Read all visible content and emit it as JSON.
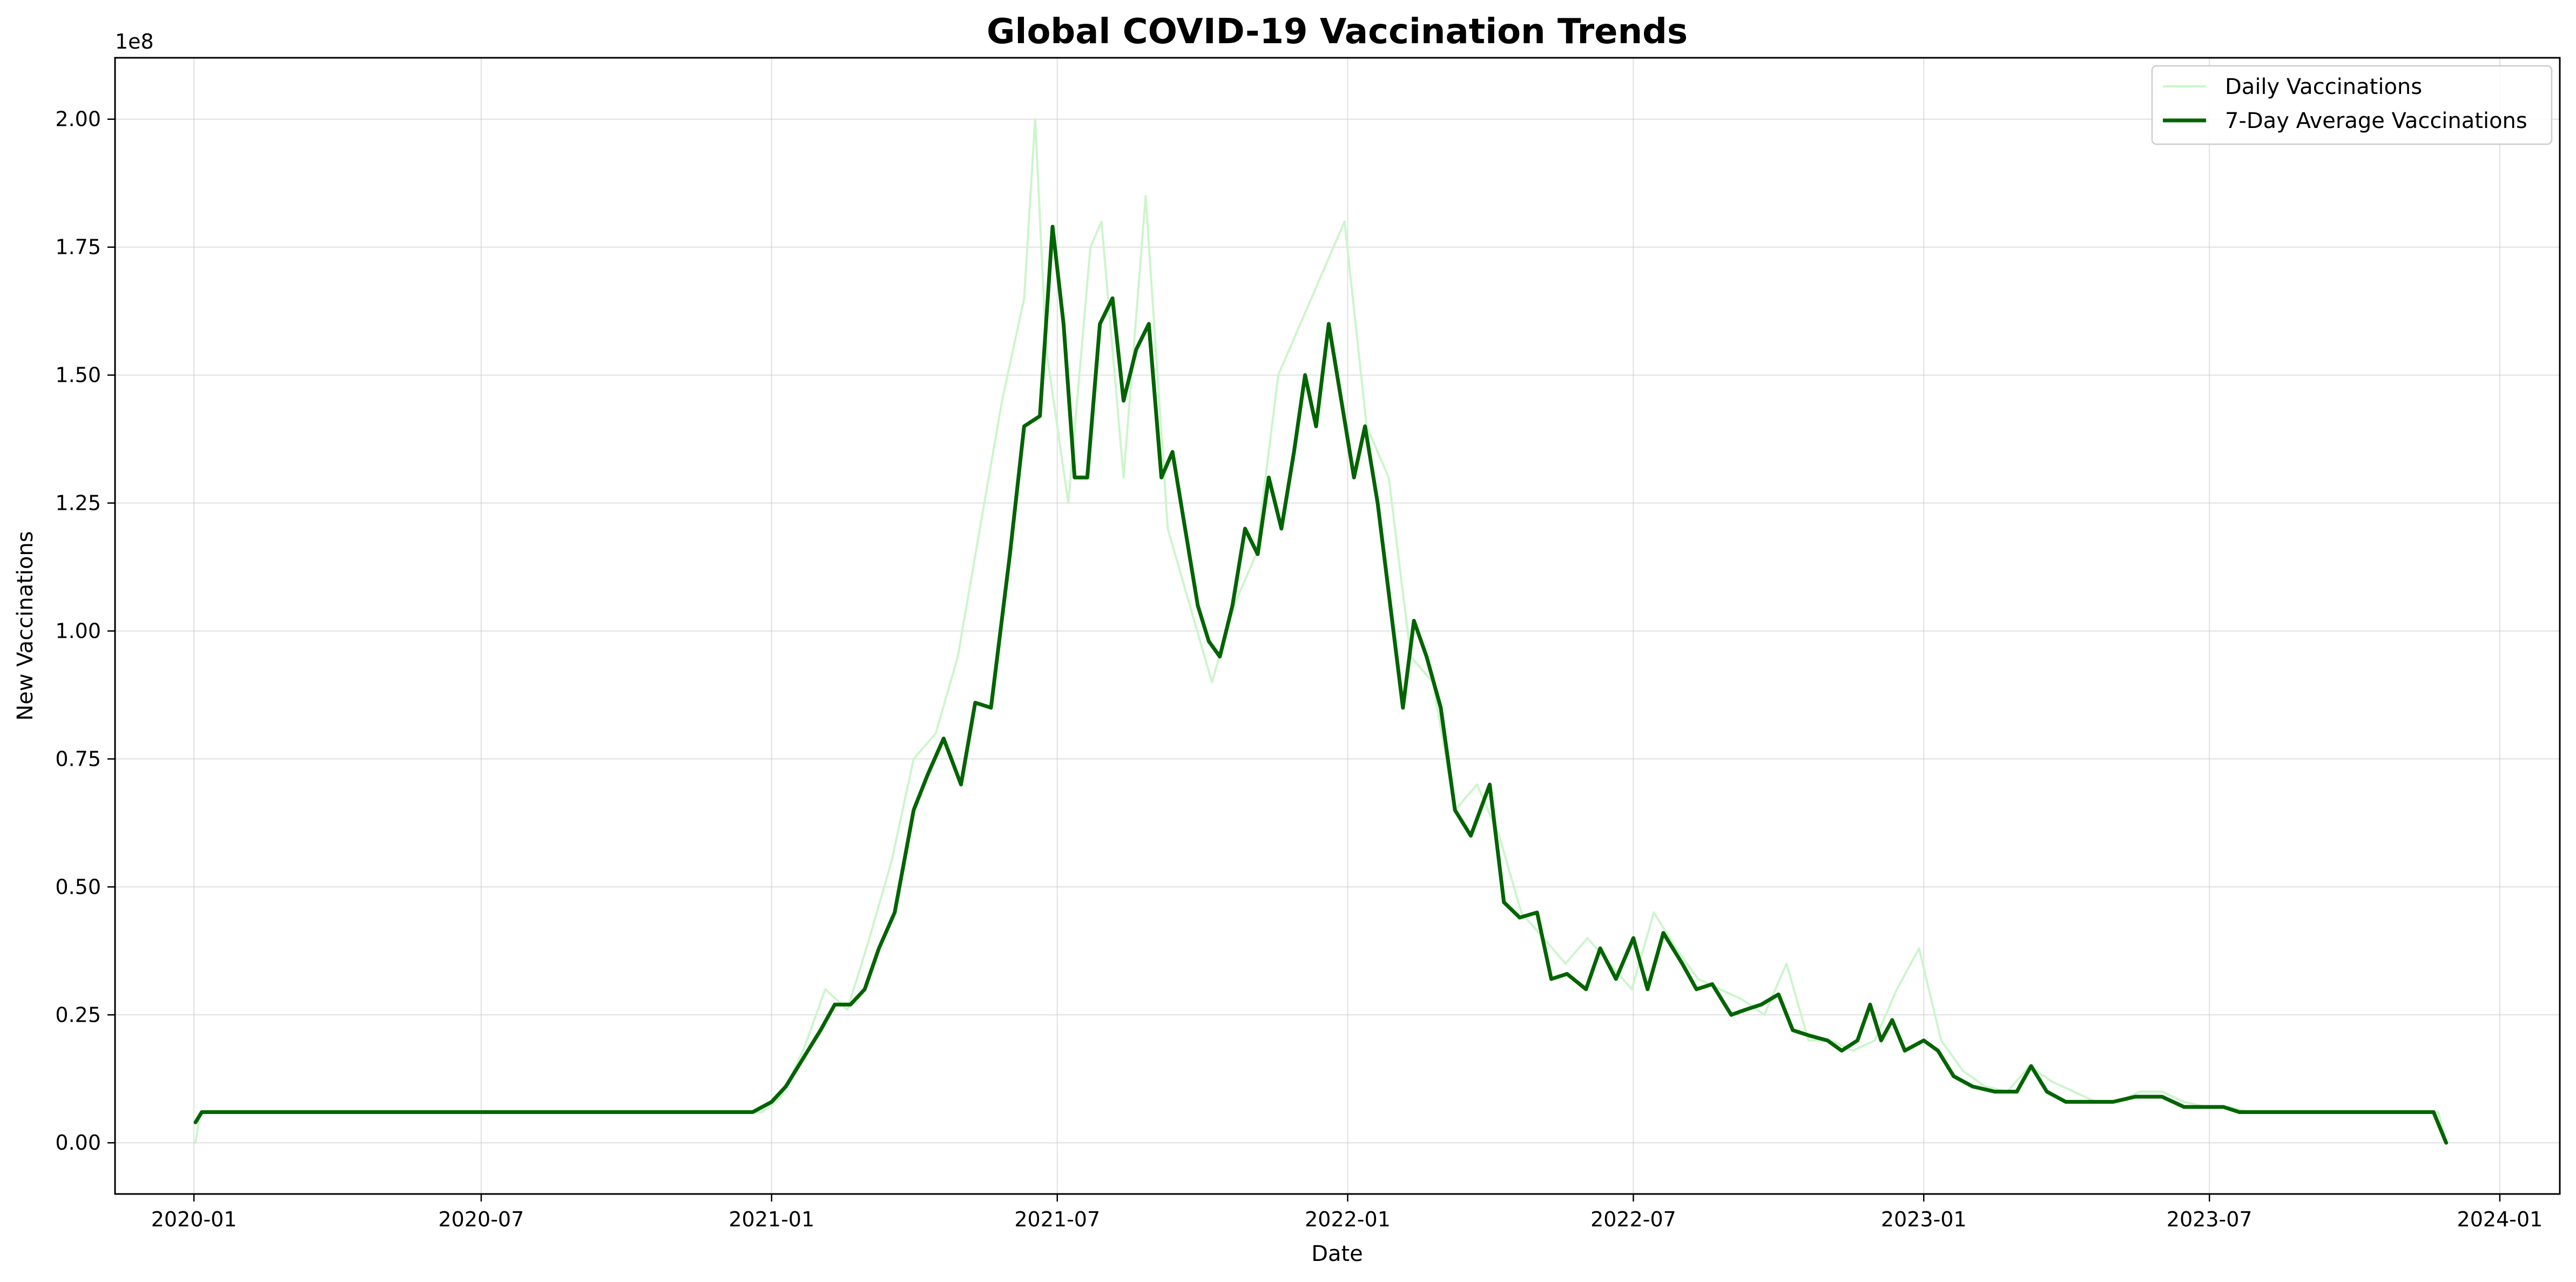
{
  "chart_data": {
    "type": "line",
    "title": "Global COVID-19 Vaccination Trends",
    "xlabel": "Date",
    "ylabel": "New Vaccinations",
    "y_offset_text": "1e8",
    "y_scale": 100000000,
    "x_ticks": [
      "2020-01",
      "2020-07",
      "2021-01",
      "2021-07",
      "2022-01",
      "2022-07",
      "2023-01",
      "2023-07",
      "2024-01"
    ],
    "y_ticks": [
      0.0,
      0.25,
      0.5,
      0.75,
      1.0,
      1.25,
      1.5,
      1.75,
      2.0
    ],
    "y_tick_labels": [
      "0.00",
      "0.25",
      "0.50",
      "0.75",
      "1.00",
      "1.25",
      "1.50",
      "1.75",
      "2.00"
    ],
    "xlim": [
      "2019-11-12",
      "2024-02-08"
    ],
    "ylim": [
      -0.1,
      2.12
    ],
    "grid": true,
    "legend_position": "top-right",
    "series": [
      {
        "name": "Daily Vaccinations",
        "color": "#ccf5cc",
        "x": [
          "2020-01-02",
          "2020-01-05",
          "2020-12-26",
          "2021-01-07",
          "2021-01-21",
          "2021-02-04",
          "2021-02-18",
          "2021-03-04",
          "2021-03-18",
          "2021-04-01",
          "2021-04-15",
          "2021-04-29",
          "2021-05-13",
          "2021-05-27",
          "2021-06-10",
          "2021-06-17",
          "2021-06-24",
          "2021-07-08",
          "2021-07-22",
          "2021-07-29",
          "2021-08-12",
          "2021-08-26",
          "2021-09-09",
          "2021-09-23",
          "2021-10-07",
          "2021-10-21",
          "2021-11-04",
          "2021-11-18",
          "2021-12-02",
          "2021-12-16",
          "2021-12-30",
          "2022-01-13",
          "2022-01-27",
          "2022-02-10",
          "2022-02-24",
          "2022-03-10",
          "2022-03-24",
          "2022-04-07",
          "2022-04-21",
          "2022-05-05",
          "2022-05-19",
          "2022-06-02",
          "2022-06-16",
          "2022-06-30",
          "2022-07-14",
          "2022-07-28",
          "2022-08-11",
          "2022-08-25",
          "2022-09-08",
          "2022-09-22",
          "2022-10-06",
          "2022-10-20",
          "2022-11-03",
          "2022-11-17",
          "2022-12-01",
          "2022-12-15",
          "2022-12-29",
          "2023-01-12",
          "2023-01-26",
          "2023-02-09",
          "2023-02-23",
          "2023-03-09",
          "2023-03-23",
          "2023-04-06",
          "2023-04-20",
          "2023-05-04",
          "2023-05-18",
          "2023-06-01",
          "2023-06-15",
          "2023-06-29",
          "2023-07-13",
          "2023-07-27",
          "2023-08-10",
          "2023-08-24",
          "2023-09-07",
          "2023-09-21",
          "2023-10-05",
          "2023-10-19",
          "2023-11-02",
          "2023-11-16",
          "2023-11-23",
          "2023-11-28"
        ],
        "values": [
          0.0,
          0.06,
          0.06,
          0.09,
          0.18,
          0.3,
          0.26,
          0.4,
          0.55,
          0.75,
          0.8,
          0.95,
          1.2,
          1.45,
          1.65,
          2.0,
          1.55,
          1.25,
          1.75,
          1.8,
          1.3,
          1.85,
          1.2,
          1.05,
          0.9,
          1.05,
          1.15,
          1.5,
          1.6,
          1.7,
          1.8,
          1.4,
          1.3,
          0.95,
          0.9,
          0.65,
          0.7,
          0.6,
          0.45,
          0.4,
          0.35,
          0.4,
          0.35,
          0.3,
          0.45,
          0.38,
          0.32,
          0.3,
          0.28,
          0.25,
          0.35,
          0.2,
          0.2,
          0.18,
          0.2,
          0.3,
          0.38,
          0.2,
          0.14,
          0.11,
          0.1,
          0.15,
          0.12,
          0.1,
          0.08,
          0.08,
          0.1,
          0.1,
          0.08,
          0.07,
          0.07,
          0.06,
          0.06,
          0.06,
          0.06,
          0.06,
          0.06,
          0.06,
          0.06,
          0.06,
          0.06,
          0.0
        ]
      },
      {
        "name": "7-Day Average Vaccinations",
        "color": "#006400",
        "x": [
          "2020-01-02",
          "2020-01-06",
          "2020-03-01",
          "2020-06-01",
          "2020-09-01",
          "2020-12-01",
          "2020-12-20",
          "2021-01-01",
          "2021-01-10",
          "2021-01-20",
          "2021-02-01",
          "2021-02-10",
          "2021-02-20",
          "2021-03-01",
          "2021-03-10",
          "2021-03-20",
          "2021-04-01",
          "2021-04-10",
          "2021-04-20",
          "2021-05-01",
          "2021-05-10",
          "2021-05-20",
          "2021-06-01",
          "2021-06-10",
          "2021-06-20",
          "2021-06-28",
          "2021-07-05",
          "2021-07-12",
          "2021-07-20",
          "2021-07-28",
          "2021-08-05",
          "2021-08-12",
          "2021-08-20",
          "2021-08-28",
          "2021-09-05",
          "2021-09-12",
          "2021-09-20",
          "2021-09-28",
          "2021-10-05",
          "2021-10-12",
          "2021-10-20",
          "2021-10-28",
          "2021-11-05",
          "2021-11-12",
          "2021-11-20",
          "2021-11-28",
          "2021-12-05",
          "2021-12-12",
          "2021-12-20",
          "2021-12-28",
          "2022-01-05",
          "2022-01-12",
          "2022-01-20",
          "2022-01-28",
          "2022-02-05",
          "2022-02-12",
          "2022-02-20",
          "2022-03-01",
          "2022-03-10",
          "2022-03-20",
          "2022-04-01",
          "2022-04-10",
          "2022-04-20",
          "2022-05-01",
          "2022-05-10",
          "2022-05-20",
          "2022-06-01",
          "2022-06-10",
          "2022-06-20",
          "2022-07-01",
          "2022-07-10",
          "2022-07-20",
          "2022-08-01",
          "2022-08-10",
          "2022-08-20",
          "2022-09-01",
          "2022-09-10",
          "2022-09-20",
          "2022-10-01",
          "2022-10-10",
          "2022-10-20",
          "2022-11-01",
          "2022-11-10",
          "2022-11-20",
          "2022-11-28",
          "2022-12-05",
          "2022-12-12",
          "2022-12-20",
          "2023-01-01",
          "2023-01-10",
          "2023-01-20",
          "2023-02-01",
          "2023-02-15",
          "2023-03-01",
          "2023-03-10",
          "2023-03-20",
          "2023-04-01",
          "2023-04-15",
          "2023-05-01",
          "2023-05-15",
          "2023-06-01",
          "2023-06-15",
          "2023-07-01",
          "2023-07-10",
          "2023-07-20",
          "2023-08-01",
          "2023-09-01",
          "2023-10-01",
          "2023-11-01",
          "2023-11-20",
          "2023-11-28"
        ],
        "values": [
          0.04,
          0.06,
          0.06,
          0.06,
          0.06,
          0.06,
          0.06,
          0.08,
          0.11,
          0.16,
          0.22,
          0.27,
          0.27,
          0.3,
          0.38,
          0.45,
          0.65,
          0.72,
          0.79,
          0.7,
          0.86,
          0.85,
          1.15,
          1.4,
          1.42,
          1.79,
          1.6,
          1.3,
          1.3,
          1.6,
          1.65,
          1.45,
          1.55,
          1.6,
          1.3,
          1.35,
          1.2,
          1.05,
          0.98,
          0.95,
          1.05,
          1.2,
          1.15,
          1.3,
          1.2,
          1.35,
          1.5,
          1.4,
          1.6,
          1.45,
          1.3,
          1.4,
          1.25,
          1.05,
          0.85,
          1.02,
          0.95,
          0.85,
          0.65,
          0.6,
          0.7,
          0.47,
          0.44,
          0.45,
          0.32,
          0.33,
          0.3,
          0.38,
          0.32,
          0.4,
          0.3,
          0.41,
          0.35,
          0.3,
          0.31,
          0.25,
          0.26,
          0.27,
          0.29,
          0.22,
          0.21,
          0.2,
          0.18,
          0.2,
          0.27,
          0.2,
          0.24,
          0.18,
          0.2,
          0.18,
          0.13,
          0.11,
          0.1,
          0.1,
          0.15,
          0.1,
          0.08,
          0.08,
          0.08,
          0.09,
          0.09,
          0.07,
          0.07,
          0.07,
          0.06,
          0.06,
          0.06,
          0.06,
          0.06,
          0.06,
          0.0
        ]
      }
    ]
  }
}
